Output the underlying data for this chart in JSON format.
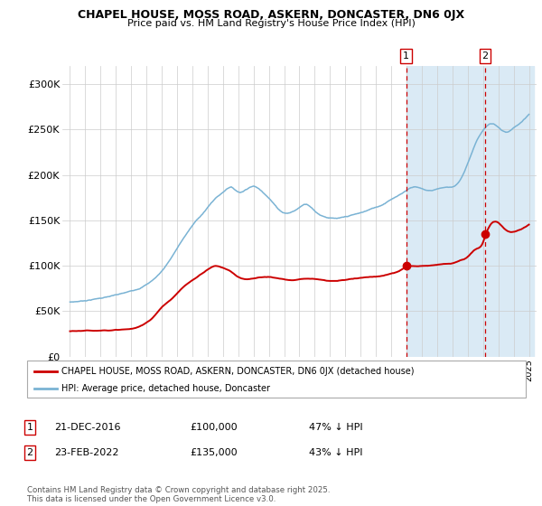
{
  "title1": "CHAPEL HOUSE, MOSS ROAD, ASKERN, DONCASTER, DN6 0JX",
  "title2": "Price paid vs. HM Land Registry's House Price Index (HPI)",
  "hpi_color": "#7ab3d4",
  "price_color": "#cc0000",
  "shaded_region_color": "#daeaf5",
  "vline_color": "#cc0000",
  "ylim": [
    0,
    320000
  ],
  "yticks": [
    0,
    50000,
    100000,
    150000,
    200000,
    250000,
    300000
  ],
  "ytick_labels": [
    "£0",
    "£50K",
    "£100K",
    "£150K",
    "£200K",
    "£250K",
    "£300K"
  ],
  "legend_line1": "CHAPEL HOUSE, MOSS ROAD, ASKERN, DONCASTER, DN6 0JX (detached house)",
  "legend_line2": "HPI: Average price, detached house, Doncaster",
  "annotation1_label": "1",
  "annotation1_date": "21-DEC-2016",
  "annotation1_price": "£100,000",
  "annotation1_hpi": "47% ↓ HPI",
  "annotation1_year": 2016.97,
  "annotation1_value": 100000,
  "annotation2_label": "2",
  "annotation2_date": "23-FEB-2022",
  "annotation2_price": "£135,000",
  "annotation2_hpi": "43% ↓ HPI",
  "annotation2_year": 2022.14,
  "annotation2_value": 135000,
  "footer": "Contains HM Land Registry data © Crown copyright and database right 2025.\nThis data is licensed under the Open Government Licence v3.0.",
  "hpi_keypoints": [
    [
      1995.0,
      60000
    ],
    [
      1996.0,
      62000
    ],
    [
      1997.0,
      65000
    ],
    [
      1998.0,
      68000
    ],
    [
      1999.0,
      72000
    ],
    [
      2000.0,
      80000
    ],
    [
      2001.0,
      95000
    ],
    [
      2002.0,
      120000
    ],
    [
      2003.0,
      145000
    ],
    [
      2004.0,
      165000
    ],
    [
      2004.5,
      175000
    ],
    [
      2005.0,
      182000
    ],
    [
      2005.5,
      188000
    ],
    [
      2006.0,
      183000
    ],
    [
      2006.5,
      186000
    ],
    [
      2007.0,
      190000
    ],
    [
      2007.5,
      185000
    ],
    [
      2008.0,
      178000
    ],
    [
      2008.5,
      168000
    ],
    [
      2009.0,
      162000
    ],
    [
      2009.5,
      163000
    ],
    [
      2010.0,
      168000
    ],
    [
      2010.5,
      172000
    ],
    [
      2011.0,
      165000
    ],
    [
      2011.5,
      160000
    ],
    [
      2012.0,
      158000
    ],
    [
      2012.5,
      157000
    ],
    [
      2013.0,
      158000
    ],
    [
      2013.5,
      160000
    ],
    [
      2014.0,
      162000
    ],
    [
      2014.5,
      165000
    ],
    [
      2015.0,
      168000
    ],
    [
      2015.5,
      172000
    ],
    [
      2016.0,
      178000
    ],
    [
      2016.5,
      182000
    ],
    [
      2017.0,
      188000
    ],
    [
      2017.5,
      192000
    ],
    [
      2018.0,
      190000
    ],
    [
      2018.5,
      188000
    ],
    [
      2019.0,
      190000
    ],
    [
      2019.5,
      192000
    ],
    [
      2020.0,
      193000
    ],
    [
      2020.5,
      200000
    ],
    [
      2021.0,
      218000
    ],
    [
      2021.5,
      240000
    ],
    [
      2022.0,
      255000
    ],
    [
      2022.5,
      262000
    ],
    [
      2023.0,
      258000
    ],
    [
      2023.5,
      252000
    ],
    [
      2024.0,
      256000
    ],
    [
      2024.5,
      262000
    ],
    [
      2025.0,
      270000
    ]
  ],
  "price_keypoints": [
    [
      1995.0,
      28000
    ],
    [
      1996.0,
      28500
    ],
    [
      1997.0,
      29000
    ],
    [
      1998.0,
      30000
    ],
    [
      1999.0,
      31000
    ],
    [
      1999.5,
      33000
    ],
    [
      2000.0,
      38000
    ],
    [
      2000.5,
      45000
    ],
    [
      2001.0,
      55000
    ],
    [
      2001.5,
      62000
    ],
    [
      2002.0,
      70000
    ],
    [
      2002.5,
      78000
    ],
    [
      2003.0,
      84000
    ],
    [
      2003.5,
      90000
    ],
    [
      2004.0,
      96000
    ],
    [
      2004.5,
      100000
    ],
    [
      2005.0,
      98000
    ],
    [
      2005.5,
      94000
    ],
    [
      2006.0,
      88000
    ],
    [
      2006.5,
      86000
    ],
    [
      2007.0,
      87000
    ],
    [
      2007.5,
      88000
    ],
    [
      2008.0,
      88000
    ],
    [
      2008.5,
      87000
    ],
    [
      2009.0,
      85000
    ],
    [
      2009.5,
      84000
    ],
    [
      2010.0,
      85000
    ],
    [
      2010.5,
      86000
    ],
    [
      2011.0,
      86000
    ],
    [
      2011.5,
      85000
    ],
    [
      2012.0,
      84000
    ],
    [
      2012.5,
      84000
    ],
    [
      2013.0,
      85000
    ],
    [
      2013.5,
      86000
    ],
    [
      2014.0,
      87000
    ],
    [
      2014.5,
      88000
    ],
    [
      2015.0,
      89000
    ],
    [
      2015.5,
      90000
    ],
    [
      2016.0,
      92000
    ],
    [
      2016.5,
      95000
    ],
    [
      2016.97,
      100000
    ],
    [
      2017.5,
      101000
    ],
    [
      2018.0,
      101500
    ],
    [
      2018.5,
      102000
    ],
    [
      2019.0,
      103000
    ],
    [
      2019.5,
      104000
    ],
    [
      2020.0,
      105000
    ],
    [
      2020.5,
      108000
    ],
    [
      2021.0,
      112000
    ],
    [
      2021.5,
      120000
    ],
    [
      2022.0,
      128000
    ],
    [
      2022.14,
      135000
    ],
    [
      2022.5,
      148000
    ],
    [
      2023.0,
      150000
    ],
    [
      2023.5,
      142000
    ],
    [
      2024.0,
      140000
    ],
    [
      2024.5,
      143000
    ],
    [
      2025.0,
      148000
    ]
  ]
}
